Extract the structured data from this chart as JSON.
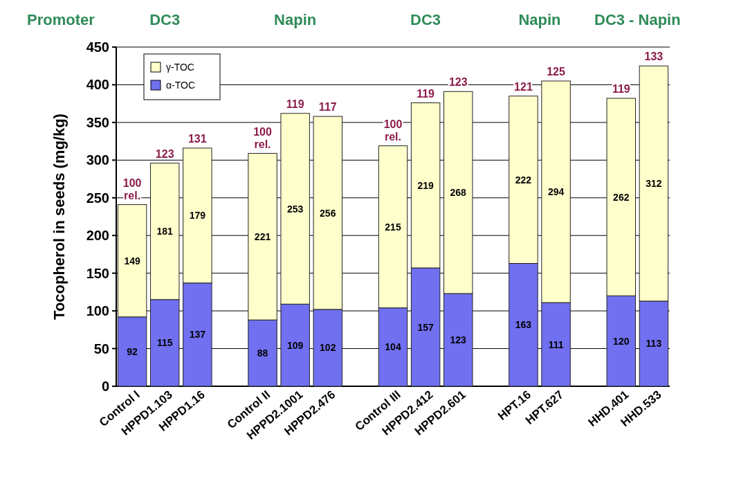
{
  "chart_data": {
    "type": "bar",
    "stacked": true,
    "ylabel": "Tocopherol in seeds (mg/kg)",
    "categories": [
      "Control I",
      "HPPD1.103",
      "HPPD1.16",
      null,
      "Control II",
      "HPPD2.1001",
      "HPPD2.476",
      null,
      "Control III",
      "HPPD2.412",
      "HPPD2.601",
      null,
      "HPT.16",
      "HPT.627",
      null,
      "HHD.401",
      "HHD.533"
    ],
    "series": [
      {
        "name": "α-TOC",
        "color": "#7070f0",
        "values": [
          92,
          115,
          137,
          null,
          88,
          109,
          102,
          null,
          104,
          157,
          123,
          null,
          163,
          111,
          null,
          120,
          113
        ]
      },
      {
        "name": "γ-TOC",
        "color": "#ffffcc",
        "values": [
          149,
          181,
          179,
          null,
          221,
          253,
          256,
          null,
          215,
          219,
          268,
          null,
          222,
          294,
          null,
          262,
          312
        ]
      }
    ],
    "annotations": [
      "Promoter",
      "DC3",
      "Napin",
      "DC3",
      "Napin",
      "DC3 - Napin",
      {
        "text": "100 rel.",
        "x": "Control I",
        "y": 241
      },
      {
        "text": "123",
        "x": "HPPD1.103",
        "y": 296
      },
      {
        "text": "131",
        "x": "HPPD1.16",
        "y": 316
      },
      {
        "text": "100 rel.",
        "x": "Control II",
        "y": 309
      },
      {
        "text": "119",
        "x": "HPPD2.1001",
        "y": 362
      },
      {
        "text": "117",
        "x": "HPPD2.476",
        "y": 358
      },
      {
        "text": "100 rel.",
        "x": "Control III",
        "y": 319
      },
      {
        "text": "119",
        "x": "HPPD2.412",
        "y": 376
      },
      {
        "text": "123",
        "x": "HPPD2.601",
        "y": 391
      },
      {
        "text": "121",
        "x": "HPT.16",
        "y": 385
      },
      {
        "text": "125",
        "x": "HPT.627",
        "y": 405
      },
      {
        "text": "119",
        "x": "HHD.401",
        "y": 382
      },
      {
        "text": "133",
        "x": "HHD.533",
        "y": 425
      }
    ],
    "ylim": [
      0,
      450
    ],
    "yticks": [
      0,
      50,
      100,
      150,
      200,
      250,
      300,
      350,
      400,
      450
    ],
    "grid": "y",
    "legend": "top left",
    "data_labels": true
  }
}
